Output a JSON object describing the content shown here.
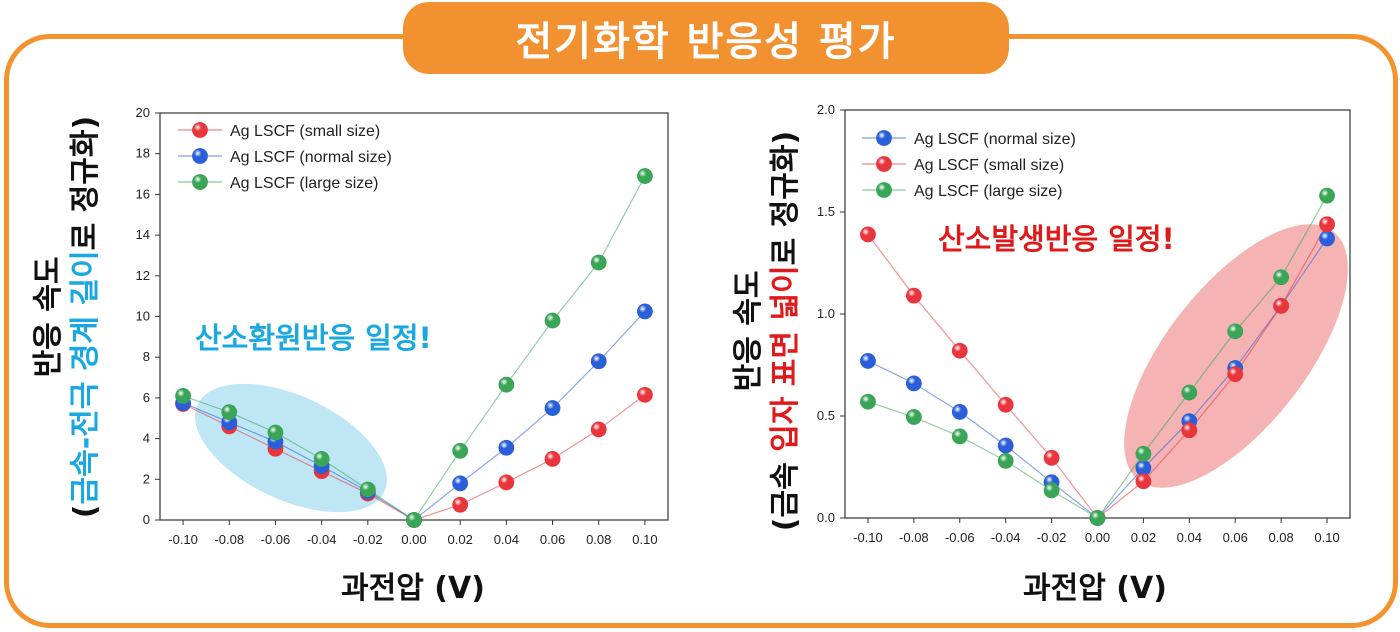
{
  "header": {
    "title": "전기화학 반응성 평가"
  },
  "colors": {
    "frame": "#f2932e",
    "red": "#e8363c",
    "blue": "#2a5fd9",
    "green": "#3aa556",
    "cyan_text": "#1aa8e0",
    "red_text": "#e01a1a",
    "ellipse_left": "#a9ddf2",
    "ellipse_right": "#f19a9a"
  },
  "chart_data": [
    {
      "type": "line",
      "x": [
        -0.1,
        -0.08,
        -0.06,
        -0.04,
        -0.02,
        0.0,
        0.02,
        0.04,
        0.06,
        0.08,
        0.1
      ],
      "xticks": [
        "-0.10",
        "-0.08",
        "-0.06",
        "-0.04",
        "-0.02",
        "0.00",
        "0.02",
        "0.04",
        "0.06",
        "0.08",
        "0.10"
      ],
      "xlim": [
        -0.11,
        0.11
      ],
      "ylim": [
        0,
        20
      ],
      "yticks": [
        "0",
        "2",
        "4",
        "6",
        "8",
        "10",
        "12",
        "14",
        "16",
        "18",
        "20"
      ],
      "xlabel": "과전압 (V)",
      "ylabel_line1": "반응 속도",
      "ylabel_line2": [
        {
          "text": "(",
          "color": "#111111"
        },
        {
          "text": "금속-전극 경계 길이",
          "color": "#1aa8e0"
        },
        {
          "text": "로 정규화)",
          "color": "#111111"
        }
      ],
      "legend_position": "top-left",
      "annotation": "산소환원반응 일정!",
      "annotation_color": "#1aa8e0",
      "series": [
        {
          "name": "Ag LSCF (small size)",
          "color": "#e8363c",
          "values": [
            5.7,
            4.6,
            3.5,
            2.4,
            1.3,
            0.0,
            0.75,
            1.85,
            3.0,
            4.45,
            6.15
          ]
        },
        {
          "name": "Ag LSCF (normal size)",
          "color": "#2a5fd9",
          "values": [
            5.75,
            4.8,
            3.85,
            2.65,
            1.4,
            0.0,
            1.8,
            3.55,
            5.5,
            7.8,
            10.25
          ]
        },
        {
          "name": "Ag LSCF (large size)",
          "color": "#3aa556",
          "values": [
            6.1,
            5.3,
            4.3,
            3.0,
            1.5,
            0.0,
            3.4,
            6.65,
            9.8,
            12.65,
            16.9
          ]
        }
      ]
    },
    {
      "type": "line",
      "x": [
        -0.1,
        -0.08,
        -0.06,
        -0.04,
        -0.02,
        0.0,
        0.02,
        0.04,
        0.06,
        0.08,
        0.1
      ],
      "xticks": [
        "-0.10",
        "-0.08",
        "-0.06",
        "-0.04",
        "-0.02",
        "0.00",
        "0.02",
        "0.04",
        "0.06",
        "0.08",
        "0.10"
      ],
      "xlim": [
        -0.11,
        0.11
      ],
      "ylim": [
        0,
        2.0
      ],
      "yticks": [
        "0.0",
        "0.5",
        "1.0",
        "1.5",
        "2.0"
      ],
      "xlabel": "과전압 (V)",
      "ylabel_line1": "반응 속도",
      "ylabel_line2": [
        {
          "text": "(금속 ",
          "color": "#111111"
        },
        {
          "text": "입자 표면 넓이",
          "color": "#e01a1a"
        },
        {
          "text": "로 정규화)",
          "color": "#111111"
        }
      ],
      "legend_position": "top-left",
      "annotation": "산소발생반응 일정!",
      "annotation_color": "#e01a1a",
      "series": [
        {
          "name": "Ag LSCF (normal size)",
          "color": "#2a5fd9",
          "values": [
            0.77,
            0.66,
            0.52,
            0.355,
            0.175,
            0.0,
            0.245,
            0.475,
            0.735,
            1.04,
            1.37
          ]
        },
        {
          "name": "Ag LSCF (small size)",
          "color": "#e8363c",
          "values": [
            1.39,
            1.09,
            0.82,
            0.555,
            0.295,
            0.0,
            0.18,
            0.43,
            0.705,
            1.04,
            1.44
          ]
        },
        {
          "name": "Ag LSCF (large size)",
          "color": "#3aa556",
          "values": [
            0.57,
            0.495,
            0.4,
            0.28,
            0.135,
            0.0,
            0.315,
            0.615,
            0.915,
            1.18,
            1.58
          ]
        }
      ]
    }
  ]
}
